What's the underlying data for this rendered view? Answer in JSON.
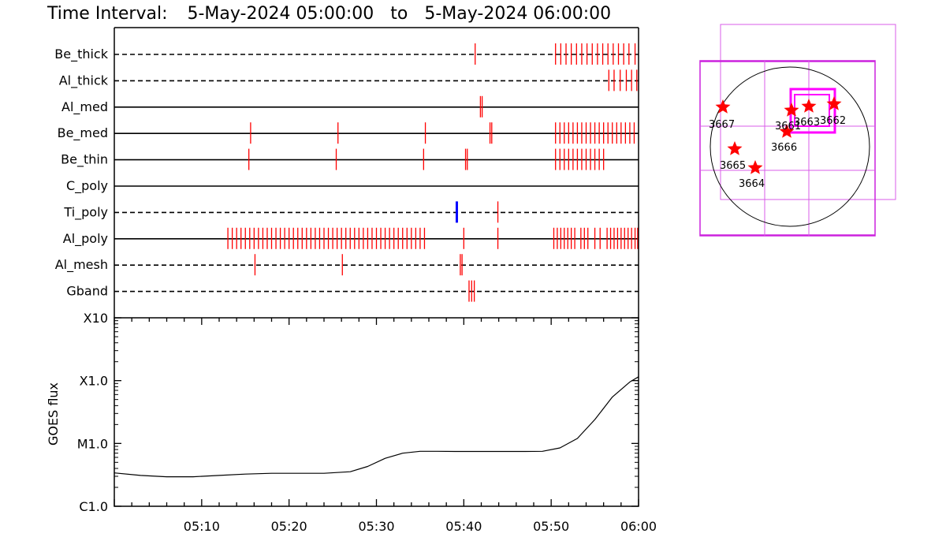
{
  "header": {
    "title_prefix": "Time Interval:",
    "start": "5-May-2024 05:00:00",
    "to_word": "to",
    "end": "5-May-2024 06:00:00"
  },
  "colors": {
    "event_red": "#ff0000",
    "event_blue": "#0000ff",
    "box_magenta": "#ff00ff",
    "box_magenta_light": "#d85ee8",
    "axis": "#000000"
  },
  "chart_data": [
    {
      "type": "timeline",
      "x_axis": {
        "ticks": [
          "05:10",
          "05:20",
          "05:30",
          "05:40",
          "05:50",
          "06:00"
        ],
        "range": [
          "05:00",
          "06:00"
        ]
      },
      "rows": [
        {
          "label": "Be_thick",
          "line": "dashed",
          "events": [
            41.3,
            50.5,
            51.1,
            51.7,
            52.3,
            52.9,
            53.5,
            54.1,
            54.7,
            55.3,
            55.9,
            56.5,
            57.1,
            57.7,
            58.3,
            58.9,
            59.6
          ]
        },
        {
          "label": "Al_thick",
          "line": "dashed",
          "events": [
            56.6,
            57.2,
            57.9,
            58.6,
            59.2,
            59.8
          ]
        },
        {
          "label": "Al_med",
          "line": "solid",
          "events": [
            41.9,
            42.1
          ]
        },
        {
          "label": "Be_med",
          "line": "solid",
          "events": [
            15.6,
            25.6,
            35.6,
            43.0,
            43.2,
            50.5,
            51.0,
            51.5,
            52.0,
            52.5,
            53.0,
            53.5,
            54.0,
            54.5,
            55.0,
            55.5,
            56.0,
            56.5,
            57.0,
            57.5,
            58.0,
            58.5,
            59.0,
            59.5
          ]
        },
        {
          "label": "Be_thin",
          "line": "solid",
          "events": [
            15.4,
            25.4,
            35.4,
            40.2,
            40.4,
            50.5,
            51.0,
            51.5,
            52.0,
            52.5,
            53.0,
            53.5,
            54.0,
            54.5,
            55.0,
            55.5,
            56.0
          ]
        },
        {
          "label": "C_poly",
          "line": "solid",
          "events": []
        },
        {
          "label": "Ti_poly",
          "line": "dashed",
          "events": [
            43.9
          ],
          "blue_events": [
            39.2
          ]
        },
        {
          "label": "Al_poly",
          "line": "solid",
          "events": [
            13.0,
            13.5,
            14.0,
            14.5,
            15.0,
            15.5,
            16.0,
            16.5,
            17.0,
            17.5,
            18.0,
            18.5,
            19.0,
            19.5,
            20.0,
            20.5,
            21.0,
            21.5,
            22.0,
            22.5,
            23.0,
            23.5,
            24.0,
            24.5,
            25.0,
            25.5,
            26.0,
            26.5,
            27.0,
            27.5,
            28.0,
            28.5,
            29.0,
            29.5,
            30.0,
            30.5,
            31.0,
            31.5,
            32.0,
            32.5,
            33.0,
            33.5,
            34.0,
            34.5,
            35.0,
            35.5,
            40.0,
            43.9,
            50.3,
            50.7,
            51.1,
            51.5,
            51.9,
            52.3,
            52.7,
            53.4,
            53.8,
            54.2,
            55.0,
            55.6,
            56.4,
            56.8,
            57.2,
            57.6,
            58.0,
            58.4,
            58.8,
            59.2,
            59.6,
            59.9
          ]
        },
        {
          "label": "Al_mesh",
          "line": "dashed",
          "events": [
            16.1,
            26.1,
            39.6,
            39.8
          ]
        },
        {
          "label": "Gband",
          "line": "dashed",
          "events": [
            40.6,
            40.9,
            41.2
          ]
        }
      ]
    },
    {
      "type": "line",
      "ylabel": "GOES flux",
      "y_scale": "log",
      "y_ticks": [
        "C1.0",
        "M1.0",
        "X1.0",
        "X10"
      ],
      "y_tick_values": [
        1e-06,
        1e-05,
        0.0001,
        0.001
      ],
      "x_ticks": [
        "05:10",
        "05:20",
        "05:30",
        "05:40",
        "05:50",
        "06:00"
      ],
      "x_range_min": [
        0,
        60
      ],
      "series": [
        {
          "x": [
            0,
            3,
            6,
            9,
            12,
            15,
            18,
            21,
            24,
            27,
            29,
            31,
            33,
            35,
            37,
            39,
            41,
            43,
            45,
            47,
            49,
            51,
            53,
            55,
            57,
            59,
            60
          ],
          "values": [
            3.4e-06,
            3.1e-06,
            2.95e-06,
            2.95e-06,
            3.1e-06,
            3.25e-06,
            3.35e-06,
            3.35e-06,
            3.35e-06,
            3.55e-06,
            4.3e-06,
            5.8e-06,
            7e-06,
            7.5e-06,
            7.5e-06,
            7.45e-06,
            7.45e-06,
            7.45e-06,
            7.45e-06,
            7.45e-06,
            7.5e-06,
            8.5e-06,
            1.2e-05,
            2.4e-05,
            5.5e-05,
            9.5e-05,
            0.000115
          ]
        }
      ]
    }
  ],
  "map": {
    "regions": [
      {
        "label": "3667"
      },
      {
        "label": "3665"
      },
      {
        "label": "3664"
      },
      {
        "label": "3666"
      },
      {
        "label": "3661"
      },
      {
        "label": "3663"
      },
      {
        "label": "3662"
      }
    ]
  }
}
